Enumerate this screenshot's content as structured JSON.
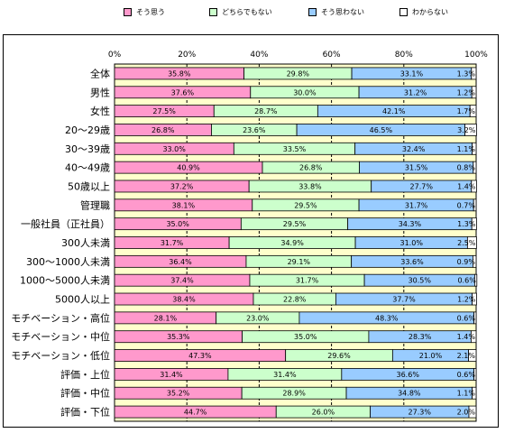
{
  "legend": [
    {
      "label": "そう思う",
      "color": "#ff99cc"
    },
    {
      "label": "どちらでもない",
      "color": "#ccffcc"
    },
    {
      "label": "そう思わない",
      "color": "#99ccff"
    },
    {
      "label": "わからない",
      "color": "#ffffff"
    }
  ],
  "chart_data": {
    "type": "bar",
    "orientation": "horizontal",
    "stacked": true,
    "xlim": [
      0,
      100
    ],
    "x_ticks": [
      "0%",
      "20%",
      "40%",
      "60%",
      "80%",
      "100%"
    ],
    "plot_background": "#ffffcc",
    "grid": "dashed vertical",
    "legend_position": "top",
    "categories": [
      "全体",
      "男性",
      "女性",
      "20～29歳",
      "30～39歳",
      "40～49歳",
      "50歳以上",
      "管理職",
      "一般社員（正社員）",
      "300人未満",
      "300～1000人未満",
      "1000～5000人未満",
      "5000人以上",
      "モチベーション・高位",
      "モチベーション・中位",
      "モチベーション・低位",
      "評価・上位",
      "評価・中位",
      "評価・下位"
    ],
    "series": [
      {
        "name": "そう思う",
        "color": "#ff99cc",
        "values": [
          35.8,
          37.6,
          27.5,
          26.8,
          33.0,
          40.9,
          37.2,
          38.1,
          35.0,
          31.7,
          36.4,
          37.4,
          38.4,
          28.1,
          35.3,
          47.3,
          31.4,
          35.2,
          44.7
        ]
      },
      {
        "name": "どちらでもない",
        "color": "#ccffcc",
        "values": [
          29.8,
          30.0,
          28.7,
          23.6,
          33.5,
          26.8,
          33.8,
          29.5,
          29.5,
          34.9,
          29.1,
          31.7,
          22.8,
          23.0,
          35.0,
          29.6,
          31.4,
          28.9,
          26.0
        ]
      },
      {
        "name": "そう思わない",
        "color": "#99ccff",
        "values": [
          33.1,
          31.2,
          42.1,
          46.5,
          32.4,
          31.5,
          27.7,
          31.7,
          34.3,
          31.0,
          33.6,
          30.5,
          37.7,
          48.3,
          28.3,
          21.0,
          36.6,
          34.8,
          27.3
        ]
      },
      {
        "name": "わからない",
        "color": "#ffffff",
        "values": [
          1.3,
          1.2,
          1.7,
          3.2,
          1.1,
          0.8,
          1.4,
          0.7,
          1.3,
          2.5,
          0.9,
          0.6,
          1.2,
          0.6,
          1.4,
          2.1,
          0.6,
          1.1,
          2.0
        ]
      }
    ]
  }
}
